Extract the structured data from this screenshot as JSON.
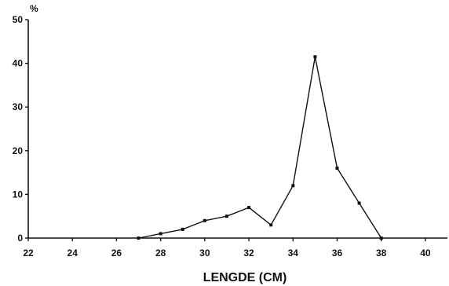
{
  "chart_data": {
    "type": "line",
    "title": "",
    "xlabel": "LENGDE (CM)",
    "ylabel": "%",
    "xlim": [
      22,
      41
    ],
    "ylim": [
      0,
      50
    ],
    "xticks": [
      22,
      24,
      26,
      28,
      30,
      32,
      34,
      36,
      38,
      40
    ],
    "yticks": [
      0,
      10,
      20,
      30,
      40,
      50
    ],
    "grid": false,
    "legend": "none",
    "color": "#111111",
    "series": [
      {
        "x": [
          27,
          28,
          29,
          30,
          31,
          32,
          33,
          34,
          35,
          36,
          37,
          38
        ],
        "y": [
          0,
          1,
          2,
          4,
          5,
          7,
          3,
          12,
          41.5,
          16,
          8,
          0
        ]
      }
    ]
  }
}
